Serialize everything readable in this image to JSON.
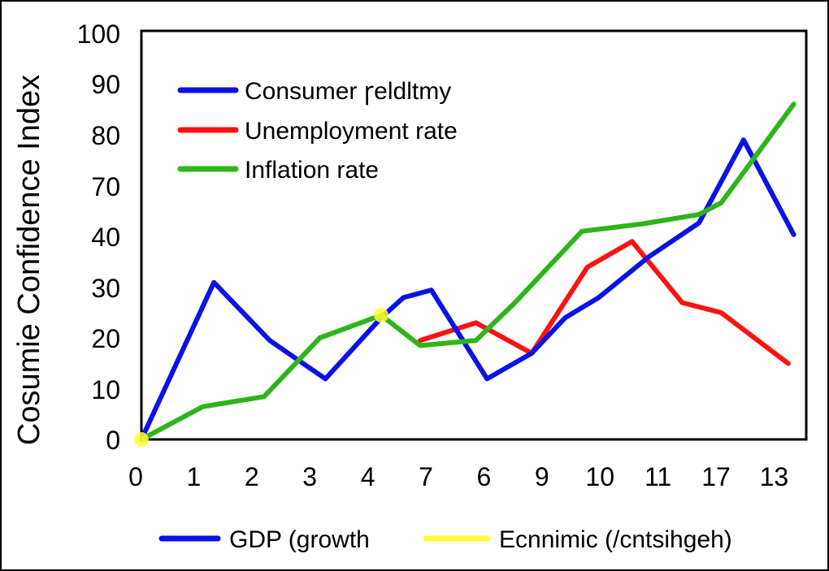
{
  "chart_data": {
    "type": "line",
    "title": "",
    "xlabel": "",
    "ylabel": "Cosumie Confidence Index",
    "x_tick_labels": [
      "0",
      "1",
      "2",
      "3",
      "4",
      "7",
      "6",
      "9",
      "10",
      "11",
      "17",
      "13"
    ],
    "y_tick_labels": [
      "100",
      "90",
      "80",
      "70",
      "40",
      "30",
      "20",
      "10",
      "0"
    ],
    "grid": false,
    "legend_top_placement": "top-left inside plot",
    "legend_bottom_placement": "below plot",
    "legend_top": [
      "Consumer ꞅeldltmy",
      "Unemployment rate",
      "Inflation rate"
    ],
    "legend_bottom": [
      "GDP (growth",
      "Ecnnimic (/cntsihgeh)"
    ],
    "series": [
      {
        "name": "Consumer ꞅeldltmy",
        "color": "#0a12e6",
        "x": [
          0,
          1.3,
          2.3,
          3.3,
          4.3,
          4.7,
          5.2,
          6.2,
          7.0,
          7.6,
          8.2,
          9.1,
          10.0,
          10.8,
          11.7
        ],
        "y": [
          0,
          31,
          19.5,
          12,
          24,
          28,
          29.5,
          12,
          17,
          24,
          28,
          36,
          48,
          79,
          41
        ]
      },
      {
        "name": "Unemployment rate",
        "color": "#ff1111",
        "x": [
          5.0,
          6.0,
          7.0,
          8.0,
          8.8,
          9.7,
          10.4,
          11.6
        ],
        "y": [
          19.5,
          23,
          17,
          34,
          39,
          27,
          25,
          15
        ]
      },
      {
        "name": "Inflation rate",
        "color": "#2db51a",
        "x": [
          0,
          1.1,
          2.2,
          3.2,
          4.3,
          5.0,
          6.0,
          6.7,
          7.9,
          9.0,
          10.0,
          10.4,
          11.7
        ],
        "y": [
          0,
          6.5,
          8.5,
          20,
          24.5,
          18.5,
          19.5,
          27,
          43,
          47.5,
          53,
          60,
          86
        ]
      },
      {
        "name": "GDP (growth",
        "color": "#0a12e6",
        "x": [],
        "y": []
      },
      {
        "name": "Ecnnimic (/cntsihgeh)",
        "color": "#ffff33",
        "x": [
          0,
          4.3
        ],
        "y": [
          0,
          24.5
        ]
      }
    ]
  }
}
